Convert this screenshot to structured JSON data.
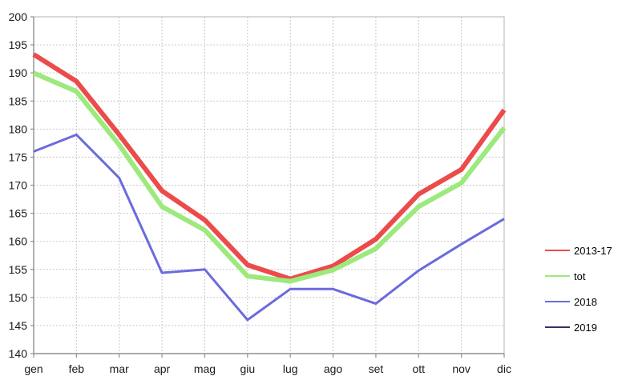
{
  "chart_data": {
    "type": "line",
    "title": "",
    "xlabel": "",
    "ylabel": "",
    "categories": [
      "gen",
      "feb",
      "mar",
      "apr",
      "mag",
      "giu",
      "lug",
      "ago",
      "set",
      "ott",
      "nov",
      "dic"
    ],
    "yticks": [
      140,
      145,
      150,
      155,
      160,
      165,
      170,
      175,
      180,
      185,
      190,
      195,
      200
    ],
    "ylim": [
      140,
      200
    ],
    "grid": true,
    "legend_position": "right",
    "series": [
      {
        "name": "2013-17",
        "color": "#ec4b4b",
        "stroke_width": 6,
        "values": [
          193.3,
          188.5,
          179.0,
          169.0,
          163.8,
          155.8,
          153.3,
          155.6,
          160.4,
          168.4,
          172.8,
          183.4
        ]
      },
      {
        "name": "tot",
        "color": "#9ce97c",
        "stroke_width": 6,
        "values": [
          190.0,
          186.7,
          177.2,
          166.2,
          162.0,
          153.8,
          152.9,
          154.9,
          158.7,
          166.2,
          170.4,
          180.2
        ]
      },
      {
        "name": "2018",
        "color": "#6b6bdd",
        "stroke_width": 3,
        "values": [
          176.0,
          179.0,
          171.3,
          154.4,
          155.0,
          146.0,
          151.5,
          151.5,
          148.9,
          154.8,
          159.5,
          164.0
        ]
      },
      {
        "name": "2019",
        "color": "#353263",
        "stroke_width": 2,
        "values": []
      }
    ],
    "colors": {
      "grid": "#c9c9c9",
      "frame": "#b3b3b3",
      "axis": "#8f8f8f",
      "tick_label": "#1a1a1a"
    }
  }
}
